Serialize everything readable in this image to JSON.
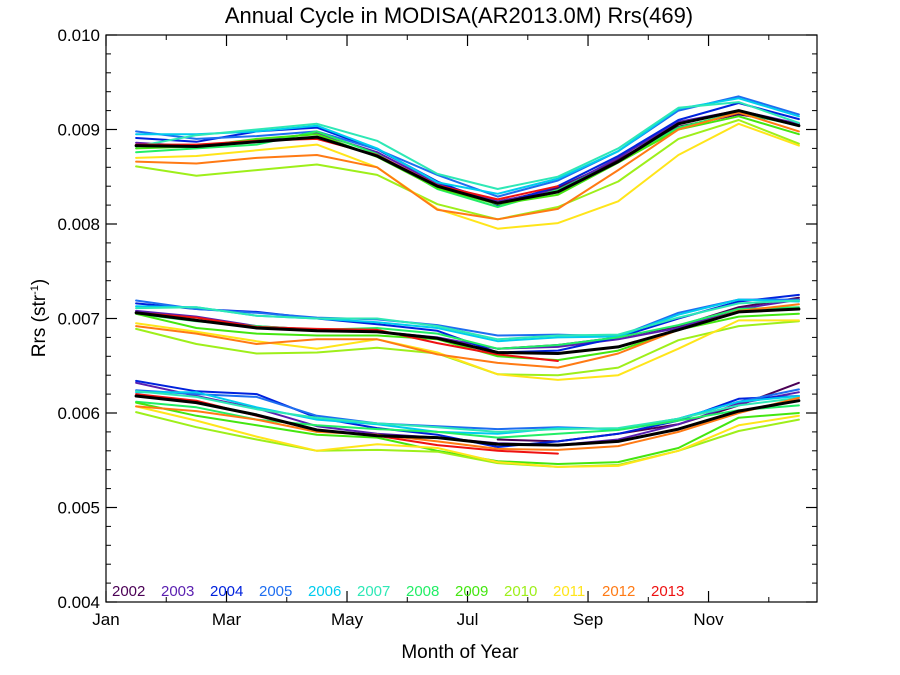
{
  "chart_data": {
    "type": "line",
    "title": "Annual Cycle in MODISA(AR2013.0M) Rrs(469)",
    "xlabel": "Month of Year",
    "ylabel": {
      "main": "Rrs (str",
      "sup": "-1",
      "tail": ")"
    },
    "xlim": [
      1,
      12.8
    ],
    "ylim": [
      0.004,
      0.01
    ],
    "x_ticks": [
      {
        "value": 1,
        "label": "Jan"
      },
      {
        "value": 3,
        "label": "Mar"
      },
      {
        "value": 5,
        "label": "May"
      },
      {
        "value": 7,
        "label": "Jul"
      },
      {
        "value": 9,
        "label": "Sep"
      },
      {
        "value": 11,
        "label": "Nov"
      }
    ],
    "y_ticks": [
      {
        "value": 0.004,
        "label": "0.004"
      },
      {
        "value": 0.005,
        "label": "0.005"
      },
      {
        "value": 0.006,
        "label": "0.006"
      },
      {
        "value": 0.007,
        "label": "0.007"
      },
      {
        "value": 0.008,
        "label": "0.008"
      },
      {
        "value": 0.009,
        "label": "0.009"
      },
      {
        "value": 0.01,
        "label": "0.010"
      }
    ],
    "grid": false,
    "legend_position": "bottom-left",
    "x": [
      1.5,
      2.5,
      3.5,
      4.5,
      5.5,
      6.5,
      7.5,
      8.5,
      9.5,
      10.5,
      11.5,
      12.5
    ],
    "series": [
      {
        "name": "2002",
        "color": "#4b0055",
        "groups": [
          [
            null,
            null,
            null,
            null,
            null,
            null,
            0.00823,
            0.00838,
            0.00868,
            0.00903,
            0.00916,
            0.00906
          ],
          [
            null,
            null,
            null,
            null,
            null,
            null,
            0.00668,
            0.00672,
            0.0068,
            0.00692,
            0.00712,
            0.00722
          ],
          [
            null,
            null,
            null,
            null,
            null,
            null,
            0.00572,
            0.0057,
            0.00578,
            0.00588,
            0.00608,
            0.00632
          ]
        ]
      },
      {
        "name": "2003",
        "color": "#5a1fb0",
        "groups": [
          [
            0.00886,
            0.00882,
            0.00888,
            0.00896,
            0.00876,
            0.00843,
            0.00824,
            0.00836,
            0.0087,
            0.00908,
            0.0092,
            0.00906
          ],
          [
            0.00708,
            0.00702,
            0.00692,
            0.00688,
            0.00686,
            0.0068,
            0.00668,
            0.0067,
            0.00678,
            0.0069,
            0.0071,
            0.0072
          ],
          [
            0.00632,
            0.00618,
            0.00605,
            0.00586,
            0.00578,
            0.00574,
            0.00568,
            0.00566,
            0.00572,
            0.00588,
            0.0061,
            0.00622
          ]
        ]
      },
      {
        "name": "2004",
        "color": "#0022dd",
        "groups": [
          [
            0.00891,
            0.00887,
            0.00898,
            0.00902,
            0.00879,
            0.00845,
            0.0082,
            0.0084,
            0.00872,
            0.0091,
            0.00928,
            0.00911
          ],
          [
            0.00716,
            0.0071,
            0.00707,
            0.007,
            0.00694,
            0.00687,
            0.00664,
            0.00666,
            0.0068,
            0.007,
            0.00718,
            0.00725
          ],
          [
            0.00634,
            0.00623,
            0.0062,
            0.00595,
            0.00584,
            0.00577,
            0.00564,
            0.0057,
            0.00578,
            0.00592,
            0.00615,
            0.00618
          ]
        ]
      },
      {
        "name": "2005",
        "color": "#1e6ef0",
        "groups": [
          [
            0.00898,
            0.0089,
            0.00893,
            0.00898,
            0.00879,
            0.00852,
            0.00829,
            0.00846,
            0.00877,
            0.0092,
            0.00935,
            0.00916
          ],
          [
            0.00719,
            0.0071,
            0.00706,
            0.00701,
            0.00699,
            0.00693,
            0.00682,
            0.00683,
            0.00681,
            0.00706,
            0.0072,
            0.0072
          ],
          [
            0.00624,
            0.0062,
            0.00617,
            0.00597,
            0.00589,
            0.00586,
            0.00583,
            0.00585,
            0.00583,
            0.00594,
            0.00612,
            0.00625
          ]
        ]
      },
      {
        "name": "2006",
        "color": "#00ccee",
        "groups": [
          [
            0.00895,
            0.00895,
            0.00898,
            0.00904,
            0.0088,
            0.00844,
            0.00832,
            0.00848,
            0.00877,
            0.00922,
            0.00933,
            0.00914
          ],
          [
            0.00713,
            0.00712,
            0.00703,
            0.007,
            0.00696,
            0.0069,
            0.00676,
            0.0068,
            0.00681,
            0.00704,
            0.0072,
            0.00718
          ],
          [
            0.00622,
            0.00622,
            0.00606,
            0.00593,
            0.00588,
            0.0058,
            0.00578,
            0.00584,
            0.00583,
            0.00594,
            0.00612,
            0.00618
          ]
        ]
      },
      {
        "name": "2007",
        "color": "#2ee8b6",
        "groups": [
          [
            0.00882,
            0.00894,
            0.009,
            0.00906,
            0.00888,
            0.00853,
            0.00837,
            0.0085,
            0.0088,
            0.00923,
            0.00929,
            0.00907
          ],
          [
            0.00711,
            0.00712,
            0.00703,
            0.007,
            0.007,
            0.00692,
            0.00678,
            0.00682,
            0.00683,
            0.00701,
            0.00716,
            0.00719
          ],
          [
            0.00623,
            0.00617,
            0.00604,
            0.00595,
            0.00589,
            0.00585,
            0.0058,
            0.00583,
            0.00584,
            0.00594,
            0.00608,
            0.00616
          ]
        ]
      },
      {
        "name": "2008",
        "color": "#22ee66",
        "groups": [
          [
            0.00876,
            0.0088,
            0.00884,
            0.00898,
            0.00874,
            0.00837,
            0.00818,
            0.00836,
            0.00866,
            0.00902,
            0.00918,
            0.00904
          ],
          [
            0.00705,
            0.00697,
            0.00692,
            0.00688,
            0.0069,
            0.00684,
            0.00668,
            0.00672,
            0.0068,
            0.00693,
            0.0071,
            0.00712
          ],
          [
            0.00612,
            0.00606,
            0.00593,
            0.00587,
            0.00583,
            0.0058,
            0.00574,
            0.00578,
            0.00582,
            0.00592,
            0.00603,
            0.00608
          ]
        ]
      },
      {
        "name": "2009",
        "color": "#44e610",
        "groups": [
          [
            0.0088,
            0.00882,
            0.0089,
            0.00895,
            0.00871,
            0.00838,
            0.00821,
            0.00831,
            0.00865,
            0.009,
            0.00914,
            0.00895
          ],
          [
            0.00705,
            0.0069,
            0.00684,
            0.00682,
            0.00682,
            0.00678,
            0.0066,
            0.00656,
            0.00666,
            0.00688,
            0.00702,
            0.00705
          ],
          [
            0.00611,
            0.00597,
            0.00587,
            0.00577,
            0.00574,
            0.0056,
            0.00549,
            0.00546,
            0.00548,
            0.00563,
            0.00595,
            0.006
          ]
        ]
      },
      {
        "name": "2010",
        "color": "#9eef1a",
        "groups": [
          [
            0.00861,
            0.00851,
            0.00857,
            0.00863,
            0.00852,
            0.00821,
            0.00805,
            0.00818,
            0.00845,
            0.0089,
            0.0091,
            0.00885
          ],
          [
            0.00689,
            0.00673,
            0.00663,
            0.00664,
            0.00669,
            0.00663,
            0.00641,
            0.0064,
            0.00648,
            0.00677,
            0.00692,
            0.00697
          ],
          [
            0.00601,
            0.00585,
            0.00572,
            0.0056,
            0.00561,
            0.00559,
            0.00547,
            0.00543,
            0.00545,
            0.0056,
            0.00581,
            0.00593
          ]
        ]
      },
      {
        "name": "2011",
        "color": "#ffe51a",
        "groups": [
          [
            0.0087,
            0.00872,
            0.00878,
            0.00884,
            0.0086,
            0.00816,
            0.00795,
            0.00801,
            0.00824,
            0.00873,
            0.00906,
            0.00883
          ],
          [
            0.00695,
            0.00686,
            0.00676,
            0.00668,
            0.00678,
            0.00664,
            0.00641,
            0.00635,
            0.0064,
            0.00668,
            0.00698,
            0.00698
          ],
          [
            0.00607,
            0.00592,
            0.00575,
            0.0056,
            0.00567,
            0.00563,
            0.00548,
            0.00543,
            0.00544,
            0.0056,
            0.00587,
            0.00597
          ]
        ]
      },
      {
        "name": "2012",
        "color": "#ff7a14",
        "groups": [
          [
            0.00866,
            0.00864,
            0.0087,
            0.00873,
            0.0086,
            0.00815,
            0.00805,
            0.00816,
            0.00857,
            0.009,
            0.00918,
            0.00898
          ],
          [
            0.00692,
            0.00684,
            0.00673,
            0.00678,
            0.00678,
            0.00662,
            0.00653,
            0.00648,
            0.00663,
            0.00688,
            0.00708,
            0.00715
          ],
          [
            0.00607,
            0.00602,
            0.00593,
            0.0058,
            0.00577,
            0.0057,
            0.00562,
            0.00561,
            0.00565,
            0.0058,
            0.006,
            0.00616
          ]
        ]
      },
      {
        "name": "2013",
        "color": "#ee1111",
        "groups": [
          [
            0.00884,
            0.00884,
            0.00888,
            0.0089,
            0.00873,
            0.00841,
            0.00826,
            0.0084,
            null,
            null,
            null,
            null
          ],
          [
            0.00706,
            0.00701,
            0.00691,
            0.00689,
            0.00688,
            0.00674,
            0.00662,
            0.00655,
            null,
            null,
            null,
            null
          ],
          [
            0.0062,
            0.00613,
            0.00597,
            0.00582,
            0.00576,
            0.00566,
            0.0056,
            0.00557,
            null,
            null,
            null,
            null
          ]
        ]
      },
      {
        "name": "",
        "color": "#000000",
        "width": 3,
        "legend": false,
        "groups": [
          [
            0.00883,
            0.00882,
            0.00887,
            0.00892,
            0.00872,
            0.0084,
            0.00822,
            0.00834,
            0.00866,
            0.00906,
            0.0092,
            0.00904
          ],
          [
            0.00706,
            0.00698,
            0.0069,
            0.00687,
            0.00686,
            0.00679,
            0.00664,
            0.00663,
            0.0067,
            0.00688,
            0.00707,
            0.0071
          ],
          [
            0.00618,
            0.00611,
            0.00598,
            0.00582,
            0.00576,
            0.00574,
            0.00567,
            0.00566,
            0.0057,
            0.00583,
            0.00602,
            0.00613
          ]
        ]
      }
    ]
  }
}
